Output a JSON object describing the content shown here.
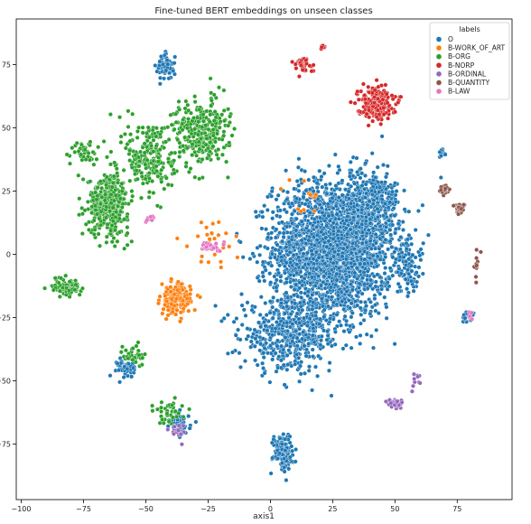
{
  "chart_data": {
    "type": "scatter",
    "title": "Fine-tuned BERT embeddings on unseen classes",
    "xlabel": "axis1",
    "ylabel": "",
    "xlim": [
      -102,
      97
    ],
    "ylim": [
      -97,
      93
    ],
    "xticks": [
      -100,
      -75,
      -50,
      -25,
      0,
      25,
      50,
      75
    ],
    "xtick_labels": [
      "−100",
      "−75",
      "−50",
      "−25",
      "0",
      "25",
      "50",
      "75"
    ],
    "yticks": [
      -75,
      -50,
      -25,
      0,
      25,
      50,
      75
    ],
    "ytick_labels": [
      "−75",
      "−50",
      "−25",
      "0",
      "25",
      "50",
      "75"
    ],
    "grid": false,
    "legend": {
      "title": "labels",
      "position": "top-right"
    },
    "series": [
      {
        "name": "O",
        "color": "#1f77b4",
        "clusters": [
          {
            "center": [
              25,
              2
            ],
            "spread": [
              24,
              26
            ],
            "count": 2600
          },
          {
            "center": [
              8,
              -32
            ],
            "spread": [
              20,
              14
            ],
            "count": 500
          },
          {
            "center": [
              40,
              20
            ],
            "spread": [
              12,
              12
            ],
            "count": 300
          },
          {
            "center": [
              5,
              -78
            ],
            "spread": [
              4,
              7
            ],
            "count": 140
          },
          {
            "center": [
              -42,
              74
            ],
            "spread": [
              3.5,
              5
            ],
            "count": 70
          },
          {
            "center": [
              -58,
              -45
            ],
            "spread": [
              3.5,
              4
            ],
            "count": 50
          },
          {
            "center": [
              -36,
              -67
            ],
            "spread": [
              4,
              4
            ],
            "count": 50
          },
          {
            "center": [
              69,
              40
            ],
            "spread": [
              1.2,
              2
            ],
            "count": 14
          },
          {
            "center": [
              79,
              -25
            ],
            "spread": [
              2.5,
              2
            ],
            "count": 20
          },
          {
            "center": [
              55,
              -5
            ],
            "spread": [
              6,
              10
            ],
            "count": 80
          }
        ]
      },
      {
        "name": "B-WORK_OF_ART",
        "color": "#ff7f0e",
        "clusters": [
          {
            "center": [
              -38,
              -18
            ],
            "spread": [
              6,
              6
            ],
            "count": 180
          },
          {
            "center": [
              -22,
              5
            ],
            "spread": [
              10,
              10
            ],
            "count": 25
          },
          {
            "center": [
              12,
              22
            ],
            "spread": [
              10,
              8
            ],
            "count": 12
          }
        ]
      },
      {
        "name": "B-ORG",
        "color": "#2ca02c",
        "clusters": [
          {
            "center": [
              -65,
              20
            ],
            "spread": [
              8,
              12
            ],
            "count": 420
          },
          {
            "center": [
              -28,
              48
            ],
            "spread": [
              11,
              13
            ],
            "count": 300
          },
          {
            "center": [
              -48,
              38
            ],
            "spread": [
              10,
              16
            ],
            "count": 220
          },
          {
            "center": [
              -82,
              -13
            ],
            "spread": [
              6,
              4
            ],
            "count": 80
          },
          {
            "center": [
              -40,
              -62
            ],
            "spread": [
              6,
              5
            ],
            "count": 40
          },
          {
            "center": [
              -55,
              -40
            ],
            "spread": [
              4,
              5
            ],
            "count": 35
          },
          {
            "center": [
              -75,
              40
            ],
            "spread": [
              6,
              5
            ],
            "count": 40
          }
        ]
      },
      {
        "name": "B-NORP",
        "color": "#d62728",
        "clusters": [
          {
            "center": [
              42,
              60
            ],
            "spread": [
              7,
              6
            ],
            "count": 240
          },
          {
            "center": [
              13,
              75
            ],
            "spread": [
              4,
              3
            ],
            "count": 40
          },
          {
            "center": [
              21,
              82
            ],
            "spread": [
              1,
              1.2
            ],
            "count": 10
          }
        ]
      },
      {
        "name": "B-ORDINAL",
        "color": "#9467bd",
        "clusters": [
          {
            "center": [
              50,
              -59
            ],
            "spread": [
              3,
              2
            ],
            "count": 45
          },
          {
            "center": [
              -37,
              -70
            ],
            "spread": [
              3,
              3
            ],
            "count": 20
          },
          {
            "center": [
              58,
              -50
            ],
            "spread": [
              2,
              3
            ],
            "count": 10
          }
        ]
      },
      {
        "name": "B-QUANTITY",
        "color": "#8c564b",
        "clusters": [
          {
            "center": [
              70,
              26
            ],
            "spread": [
              2,
              2
            ],
            "count": 25
          },
          {
            "center": [
              76,
              18
            ],
            "spread": [
              2,
              2
            ],
            "count": 25
          },
          {
            "center": [
              83,
              -4
            ],
            "spread": [
              2,
              6
            ],
            "count": 12
          }
        ]
      },
      {
        "name": "B-LAW",
        "color": "#e377c2",
        "clusters": [
          {
            "center": [
              -24,
              3
            ],
            "spread": [
              5,
              2
            ],
            "count": 30
          },
          {
            "center": [
              -48,
              14
            ],
            "spread": [
              3,
              2
            ],
            "count": 8
          },
          {
            "center": [
              80,
              -24
            ],
            "spread": [
              1.5,
              1.5
            ],
            "count": 5
          }
        ]
      }
    ]
  }
}
